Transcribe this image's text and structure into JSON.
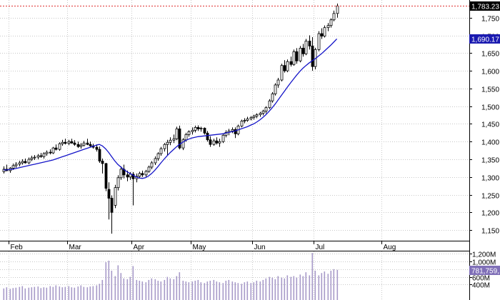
{
  "chart_data": [
    {
      "type": "candlestick",
      "title": "",
      "xlabel": "",
      "ylabel": "",
      "ylim": [
        1120,
        1800
      ],
      "y_ticks": [
        "1,150",
        "1,200",
        "1,250",
        "1,300",
        "1,350",
        "1,400",
        "1,450",
        "1,500",
        "1,550",
        "1,600",
        "1,650",
        "1,700",
        "1,750"
      ],
      "y_tick_values": [
        1150,
        1200,
        1250,
        1300,
        1350,
        1400,
        1450,
        1500,
        1550,
        1600,
        1650,
        1700,
        1750
      ],
      "months": [
        {
          "label": "Feb",
          "index": 2
        },
        {
          "label": "Mar",
          "index": 21
        },
        {
          "label": "Apr",
          "index": 42
        },
        {
          "label": "May",
          "index": 61
        },
        {
          "label": "Jun",
          "index": 81
        },
        {
          "label": "Jul",
          "index": 101
        },
        {
          "label": "Aug",
          "index": 123
        }
      ],
      "last_price_label": "1,783.23",
      "last_price_value": 1783.23,
      "ma_label": "1,690.17",
      "ma_value": 1690.17,
      "series": [
        {
          "type": "candles",
          "ohlc": [
            [
              1315,
              1330,
              1310,
              1322
            ],
            [
              1322,
              1335,
              1316,
              1318
            ],
            [
              1318,
              1328,
              1312,
              1325
            ],
            [
              1325,
              1338,
              1320,
              1332
            ],
            [
              1332,
              1342,
              1326,
              1336
            ],
            [
              1336,
              1346,
              1330,
              1340
            ],
            [
              1340,
              1350,
              1335,
              1344
            ],
            [
              1344,
              1352,
              1338,
              1340
            ],
            [
              1340,
              1355,
              1336,
              1350
            ],
            [
              1350,
              1360,
              1345,
              1354
            ],
            [
              1354,
              1362,
              1348,
              1356
            ],
            [
              1356,
              1365,
              1350,
              1360
            ],
            [
              1360,
              1368,
              1354,
              1358
            ],
            [
              1358,
              1370,
              1352,
              1366
            ],
            [
              1366,
              1375,
              1360,
              1370
            ],
            [
              1370,
              1378,
              1364,
              1368
            ],
            [
              1368,
              1385,
              1365,
              1382
            ],
            [
              1382,
              1392,
              1375,
              1378
            ],
            [
              1378,
              1398,
              1374,
              1394
            ],
            [
              1394,
              1405,
              1388,
              1398
            ],
            [
              1398,
              1408,
              1392,
              1395
            ],
            [
              1395,
              1405,
              1390,
              1400
            ],
            [
              1400,
              1408,
              1394,
              1396
            ],
            [
              1396,
              1404,
              1388,
              1392
            ],
            [
              1392,
              1400,
              1382,
              1386
            ],
            [
              1386,
              1396,
              1380,
              1390
            ],
            [
              1390,
              1402,
              1386,
              1396
            ],
            [
              1396,
              1408,
              1390,
              1392
            ],
            [
              1392,
              1400,
              1384,
              1388
            ],
            [
              1388,
              1394,
              1380,
              1384
            ],
            [
              1384,
              1392,
              1372,
              1378
            ],
            [
              1378,
              1386,
              1340,
              1345
            ],
            [
              1345,
              1352,
              1310,
              1338
            ],
            [
              1338,
              1340,
              1260,
              1268
            ],
            [
              1265,
              1285,
              1180,
              1240
            ],
            [
              1240,
              1248,
              1140,
              1200
            ],
            [
              1220,
              1278,
              1212,
              1270
            ],
            [
              1270,
              1305,
              1262,
              1298
            ],
            [
              1298,
              1330,
              1292,
              1322
            ],
            [
              1322,
              1335,
              1296,
              1306
            ],
            [
              1306,
              1318,
              1288,
              1300
            ],
            [
              1300,
              1314,
              1292,
              1308
            ],
            [
              1308,
              1314,
              1220,
              1295
            ],
            [
              1295,
              1310,
              1285,
              1302
            ],
            [
              1302,
              1315,
              1296,
              1310
            ],
            [
              1310,
              1318,
              1300,
              1306
            ],
            [
              1306,
              1320,
              1300,
              1316
            ],
            [
              1316,
              1332,
              1312,
              1328
            ],
            [
              1328,
              1345,
              1322,
              1340
            ],
            [
              1340,
              1358,
              1334,
              1352
            ],
            [
              1352,
              1370,
              1346,
              1366
            ],
            [
              1366,
              1385,
              1360,
              1380
            ],
            [
              1380,
              1396,
              1372,
              1392
            ],
            [
              1392,
              1405,
              1360,
              1398
            ],
            [
              1398,
              1412,
              1390,
              1404
            ],
            [
              1404,
              1420,
              1396,
              1408
            ],
            [
              1408,
              1442,
              1404,
              1436
            ],
            [
              1436,
              1445,
              1378,
              1382
            ],
            [
              1382,
              1410,
              1376,
              1405
            ],
            [
              1405,
              1425,
              1400,
              1420
            ],
            [
              1420,
              1432,
              1414,
              1428
            ],
            [
              1428,
              1440,
              1420,
              1432
            ],
            [
              1432,
              1445,
              1426,
              1440
            ],
            [
              1440,
              1446,
              1430,
              1436
            ],
            [
              1436,
              1442,
              1428,
              1438
            ],
            [
              1438,
              1440,
              1420,
              1424
            ],
            [
              1424,
              1430,
              1400,
              1405
            ],
            [
              1405,
              1415,
              1385,
              1392
            ],
            [
              1392,
              1408,
              1388,
              1402
            ],
            [
              1402,
              1412,
              1392,
              1396
            ],
            [
              1396,
              1408,
              1385,
              1400
            ],
            [
              1400,
              1422,
              1396,
              1418
            ],
            [
              1418,
              1432,
              1412,
              1426
            ],
            [
              1426,
              1436,
              1418,
              1430
            ],
            [
              1430,
              1440,
              1424,
              1434
            ],
            [
              1434,
              1440,
              1410,
              1422
            ],
            [
              1422,
              1448,
              1418,
              1444
            ],
            [
              1444,
              1462,
              1440,
              1458
            ],
            [
              1458,
              1466,
              1452,
              1460
            ],
            [
              1460,
              1470,
              1456,
              1464
            ],
            [
              1464,
              1472,
              1460,
              1468
            ],
            [
              1468,
              1476,
              1462,
              1472
            ],
            [
              1472,
              1480,
              1466,
              1476
            ],
            [
              1476,
              1484,
              1470,
              1480
            ],
            [
              1480,
              1490,
              1474,
              1486
            ],
            [
              1486,
              1500,
              1480,
              1496
            ],
            [
              1496,
              1520,
              1492,
              1515
            ],
            [
              1515,
              1540,
              1510,
              1535
            ],
            [
              1535,
              1565,
              1530,
              1560
            ],
            [
              1560,
              1580,
              1552,
              1574
            ],
            [
              1574,
              1620,
              1570,
              1615
            ],
            [
              1615,
              1630,
              1595,
              1600
            ],
            [
              1600,
              1632,
              1596,
              1626
            ],
            [
              1626,
              1640,
              1612,
              1618
            ],
            [
              1618,
              1660,
              1614,
              1654
            ],
            [
              1654,
              1664,
              1620,
              1628
            ],
            [
              1628,
              1670,
              1624,
              1664
            ],
            [
              1664,
              1676,
              1640,
              1648
            ],
            [
              1648,
              1690,
              1644,
              1684
            ],
            [
              1684,
              1700,
              1660,
              1670
            ],
            [
              1670,
              1695,
              1600,
              1612
            ],
            [
              1612,
              1665,
              1604,
              1660
            ],
            [
              1660,
              1712,
              1655,
              1705
            ],
            [
              1705,
              1720,
              1690,
              1698
            ],
            [
              1698,
              1728,
              1694,
              1722
            ],
            [
              1722,
              1735,
              1712,
              1728
            ],
            [
              1728,
              1748,
              1722,
              1744
            ],
            [
              1744,
              1770,
              1740,
              1762
            ],
            [
              1762,
              1790,
              1750,
              1783.23
            ]
          ]
        },
        {
          "type": "moving-average",
          "values": [
            1320,
            1320,
            1321,
            1322,
            1324,
            1326,
            1328,
            1330,
            1332,
            1334,
            1336,
            1338,
            1340,
            1342,
            1344,
            1346,
            1348,
            1351,
            1354,
            1357,
            1360,
            1363,
            1366,
            1369,
            1372,
            1375,
            1378,
            1381,
            1384,
            1387,
            1390,
            1392,
            1388,
            1380,
            1370,
            1358,
            1346,
            1336,
            1328,
            1321,
            1315,
            1310,
            1305,
            1300,
            1297,
            1296,
            1298,
            1303,
            1310,
            1319,
            1329,
            1340,
            1350,
            1360,
            1369,
            1377,
            1385,
            1392,
            1398,
            1403,
            1407,
            1410,
            1412,
            1414,
            1415,
            1416,
            1417,
            1418,
            1419,
            1420,
            1421,
            1422,
            1424,
            1426,
            1428,
            1430,
            1433,
            1436,
            1439,
            1442,
            1446,
            1450,
            1455,
            1461,
            1468,
            1476,
            1485,
            1495,
            1506,
            1518,
            1530,
            1542,
            1554,
            1566,
            1577,
            1588,
            1598,
            1607,
            1615,
            1622,
            1628,
            1634,
            1641,
            1648,
            1656,
            1664,
            1672,
            1681,
            1690.17
          ]
        }
      ]
    },
    {
      "type": "bar",
      "title": "",
      "y_ticks": [
        "1,200M",
        "1,000M",
        "800M",
        "600M",
        "400M"
      ],
      "y_tick_values": [
        1200,
        1000,
        800,
        600,
        400
      ],
      "ylim": [
        0,
        1260
      ],
      "volume_label": "781,759,...",
      "volume_value": 781.76,
      "values": [
        300,
        330,
        290,
        310,
        320,
        340,
        360,
        300,
        320,
        330,
        340,
        350,
        310,
        330,
        320,
        360,
        340,
        380,
        350,
        330,
        340,
        360,
        330,
        320,
        350,
        380,
        340,
        330,
        350,
        360,
        380,
        420,
        520,
        980,
        1020,
        760,
        620,
        900,
        700,
        560,
        540,
        600,
        880,
        520,
        500,
        480,
        460,
        520,
        560,
        540,
        500,
        480,
        520,
        600,
        560,
        540,
        620,
        720,
        500,
        480,
        460,
        480,
        500,
        520,
        460,
        440,
        480,
        500,
        520,
        480,
        460,
        440,
        500,
        520,
        480,
        460,
        440,
        420,
        460,
        480,
        440,
        460,
        500,
        480,
        520,
        560,
        600,
        580,
        540,
        620,
        580,
        560,
        640,
        600,
        620,
        580,
        660,
        620,
        720,
        640,
        1220,
        760,
        640,
        700,
        740,
        680,
        760,
        800,
        781.76
      ]
    }
  ]
}
